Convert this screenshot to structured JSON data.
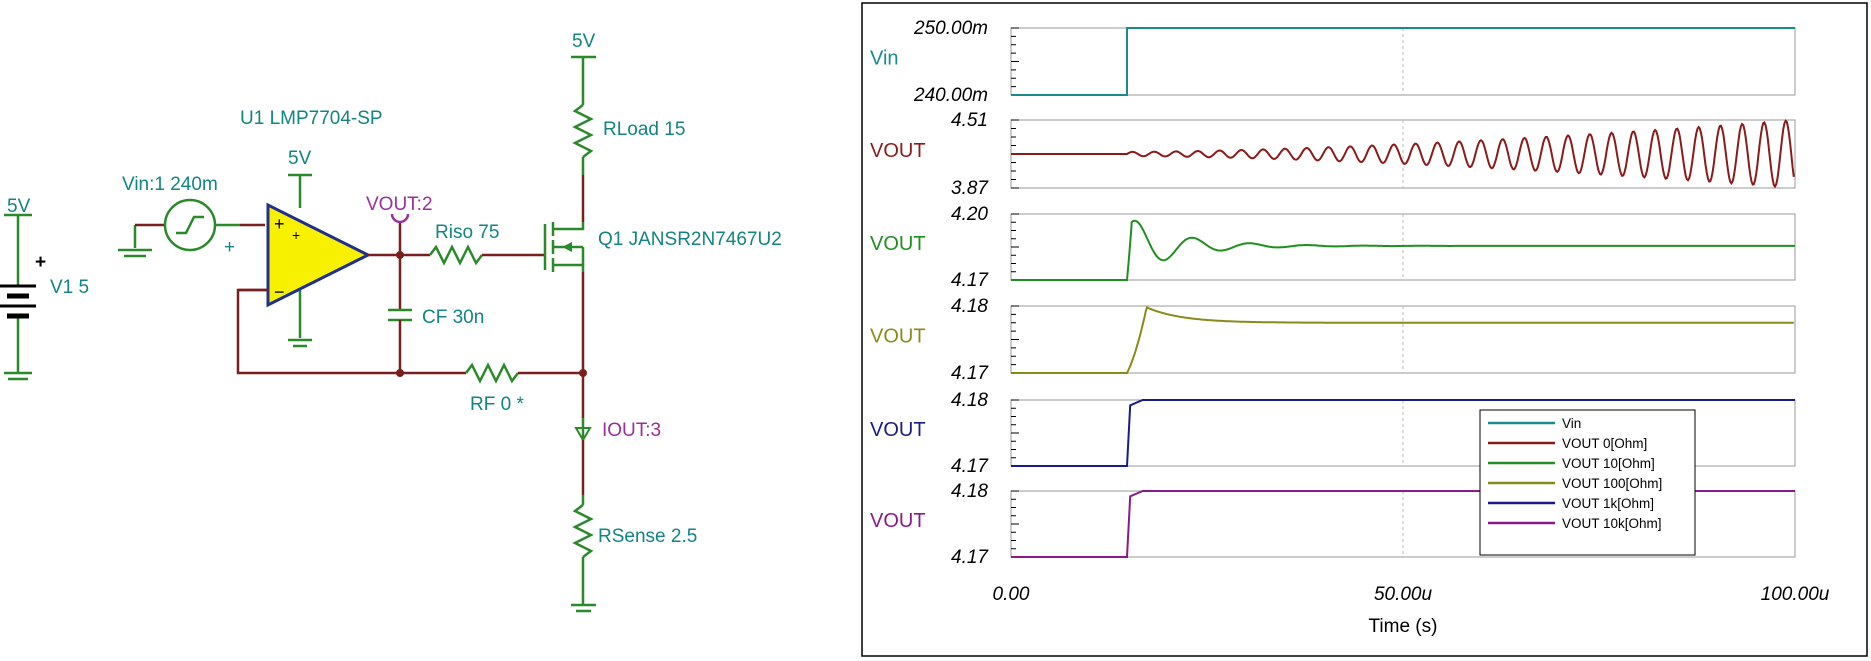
{
  "schematic": {
    "labels": {
      "supply_left": "5V",
      "v1": "V1 5",
      "vin_source": "Vin:1 240m",
      "opamp_name": "U1 LMP7704-SP",
      "opamp_supply": "5V",
      "vout_probe": "VOUT:2",
      "riso": "Riso 75",
      "cf": "CF 30n",
      "rf": "RF 0 *",
      "top_supply": "5V",
      "rload": "RLoad 15",
      "q1": "Q1 JANSR2N7467U2",
      "iout": "IOUT:3",
      "rsense": "RSense 2.5",
      "plus_sign": "+",
      "battery_plus": "+",
      "opamp_plus": "+",
      "opamp_minus": "−"
    }
  },
  "chart_data": [
    {
      "type": "line",
      "trace_label": "Vin",
      "yticks": [
        "250.00m",
        "240.00m"
      ],
      "ylim": [
        0.24,
        0.25
      ],
      "color": "#1a8a8a",
      "x": [
        0,
        14.8,
        14.8,
        100
      ],
      "y": [
        0.24,
        0.24,
        0.25,
        0.25
      ]
    },
    {
      "type": "line",
      "trace_label": "VOUT",
      "yticks": [
        "4.51",
        "3.87"
      ],
      "ylim": [
        3.87,
        4.51
      ],
      "color": "#8b1a1a",
      "description_of_values": "oscillation starting at 14.8u with growing amplitude around 4.19",
      "x_start": 14.8,
      "baseline": 4.19,
      "freq_per_u": 0.36,
      "amp_start": 0.02,
      "amp_end": 0.32
    },
    {
      "type": "line",
      "trace_label": "VOUT",
      "yticks": [
        "4.20",
        "4.17"
      ],
      "ylim": [
        4.17,
        4.2
      ],
      "color": "#1f8f1f",
      "x_start": 14.8,
      "pre": 4.17,
      "final": 4.17,
      "overshoot": 4.199,
      "ringing": true
    },
    {
      "type": "line",
      "trace_label": "VOUT",
      "yticks": [
        "4.18",
        "4.17"
      ],
      "ylim": [
        4.17,
        4.18
      ],
      "color": "#8a8a1a",
      "x_start": 14.8,
      "pre": 4.17,
      "final": 4.1775,
      "overshoot": 4.1798
    },
    {
      "type": "line",
      "trace_label": "VOUT",
      "yticks": [
        "4.18",
        "4.17"
      ],
      "ylim": [
        4.17,
        4.18
      ],
      "color": "#1a1a8a",
      "x_start": 14.8,
      "pre": 4.17,
      "final": 4.18
    },
    {
      "type": "line",
      "trace_label": "VOUT",
      "yticks": [
        "4.18",
        "4.17"
      ],
      "ylim": [
        4.17,
        4.18
      ],
      "color": "#8a1a8a",
      "x_start": 14.8,
      "pre": 4.17,
      "final": 4.18
    }
  ],
  "x_axis": {
    "ticks": [
      "0.00",
      "50.00u",
      "100.00u"
    ],
    "xlim": [
      0,
      100
    ],
    "title": "Time (s)"
  },
  "legend": [
    {
      "label": "Vin",
      "color": "#1a8a8a"
    },
    {
      "label": "VOUT  0[Ohm]",
      "color": "#8b1a1a"
    },
    {
      "label": "VOUT  10[Ohm]",
      "color": "#1f8f1f"
    },
    {
      "label": "VOUT  100[Ohm]",
      "color": "#8a8a1a"
    },
    {
      "label": "VOUT  1k[Ohm]",
      "color": "#1a1a8a"
    },
    {
      "label": "VOUT  10k[Ohm]",
      "color": "#8a1a8a"
    }
  ]
}
